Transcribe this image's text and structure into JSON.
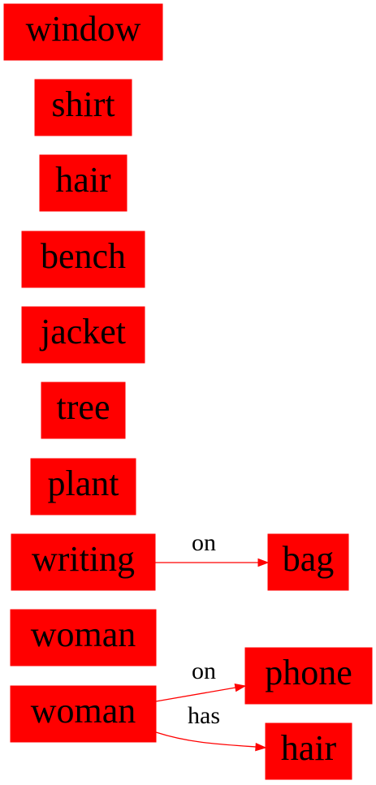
{
  "colors": {
    "node_fill": "#ff0000",
    "edge": "#ff0000",
    "text": "#000000",
    "background": "#ffffff"
  },
  "nodes": {
    "window": "window",
    "shirt": "shirt",
    "hair_1": "hair",
    "bench": "bench",
    "jacket": "jacket",
    "tree": "tree",
    "plant": "plant",
    "writing": "writing",
    "bag": "bag",
    "woman_1": "woman",
    "woman_2": "woman",
    "phone": "phone",
    "hair_2": "hair"
  },
  "edges": {
    "writing_bag": "on",
    "woman_phone": "on",
    "woman_hair": "has"
  }
}
